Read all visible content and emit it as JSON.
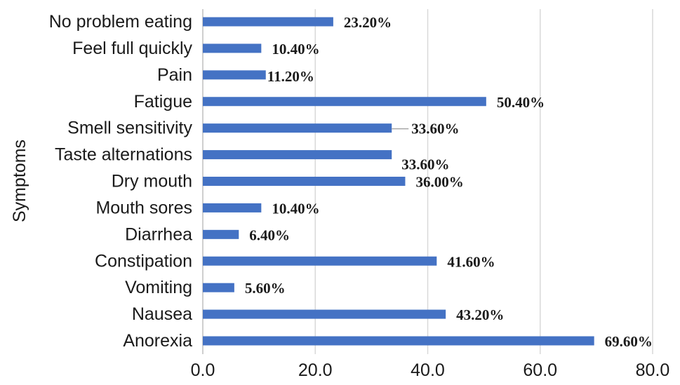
{
  "chart_data": {
    "type": "bar",
    "orientation": "horizontal",
    "categories": [
      "No problem eating",
      "Feel full quickly",
      "Pain",
      "Fatigue",
      "Smell sensitivity",
      "Taste alternations",
      "Dry mouth",
      "Mouth sores",
      "Diarrhea",
      "Constipation",
      "Vomiting",
      "Nausea",
      "Anorexia"
    ],
    "values": [
      23.2,
      10.4,
      11.2,
      50.4,
      33.6,
      33.6,
      36.0,
      10.4,
      6.4,
      41.6,
      5.6,
      43.2,
      69.6
    ],
    "data_labels": [
      "23.20%",
      "10.40%",
      "11.20%",
      "50.40%",
      "33.60%",
      "33.60%",
      "36.00%",
      "10.40%",
      "6.40%",
      "41.60%",
      "5.60%",
      "43.20%",
      "69.60%"
    ],
    "ylabel": "Symptoms",
    "xlabel": "",
    "xlim": [
      0,
      80
    ],
    "xticks": [
      0,
      20,
      40,
      60,
      80
    ],
    "xtick_labels": [
      "0.0",
      "20.0",
      "40.0",
      "60.0",
      "80.0"
    ],
    "grid": "vertical",
    "bar_color": "#4472c4"
  }
}
